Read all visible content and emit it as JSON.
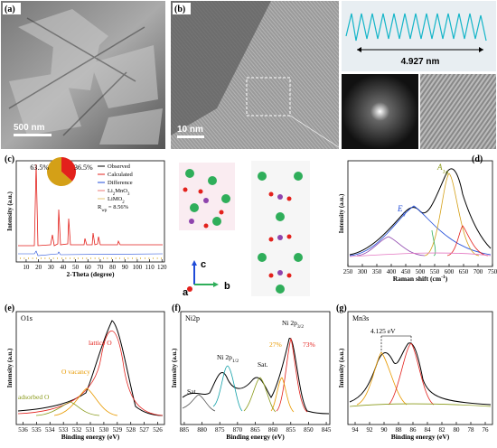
{
  "panels": {
    "a": {
      "label": "(a)",
      "scale_bar": "500 nm"
    },
    "b": {
      "label": "(b)",
      "scale_bar": "10 nm",
      "spacing": "4.927 nm"
    },
    "c": {
      "label": "(c)",
      "ylabel": "Intensity (a.u.)",
      "xlabel": "2-Theta (degree)",
      "xlim": [
        2,
        122
      ],
      "xticks": [
        10,
        20,
        30,
        40,
        50,
        60,
        70,
        80,
        90,
        100,
        110,
        120
      ],
      "legend": [
        "Observed",
        "Calculated",
        "Difference",
        [
          {
            "text": "Li"
          },
          {
            "text": "2",
            "sub": true
          },
          {
            "text": "MnO"
          },
          {
            "text": "3",
            "sub": true
          }
        ],
        [
          {
            "text": "LiMO"
          },
          {
            "text": "2",
            "sub": true
          }
        ],
        [
          {
            "text": "R"
          },
          {
            "text": "wp",
            "sub": true
          },
          {
            "text": " = 8.56%"
          }
        ]
      ],
      "pie": {
        "values": [
          63.5,
          36.5
        ],
        "value_labels": [
          "63.5%",
          "36.5%"
        ],
        "colors": [
          "#d4a017",
          "#e3211c"
        ]
      },
      "axes": [
        "a",
        "b",
        "c"
      ]
    },
    "d": {
      "label": "(d)",
      "ylabel": "Intensity (a.u.)",
      "xlabel": [
        {
          "text": "Raman shift (cm"
        },
        {
          "text": "-1",
          "sup": true
        },
        {
          "text": ")"
        }
      ],
      "xlim": [
        250,
        750
      ],
      "xticks": [
        250,
        300,
        350,
        400,
        450,
        500,
        550,
        600,
        650,
        700,
        750
      ],
      "peaks": [
        [
          {
            "text": "E"
          },
          {
            "text": "g",
            "sub": true
          }
        ],
        [
          {
            "text": "A"
          },
          {
            "text": "1g",
            "sub": true
          }
        ]
      ]
    },
    "e": {
      "label": "(e)",
      "spectrum": "O1s",
      "ylabel": "Intensity (a.u.)",
      "xlabel": "Binding energy (eV)",
      "xlim": [
        536.5,
        525.5
      ],
      "xticks": [
        536,
        535,
        534,
        533,
        532,
        531,
        530,
        529,
        528,
        527,
        526
      ],
      "annotations": [
        "lattice O",
        "O vacancy",
        "adsorbed O"
      ]
    },
    "f": {
      "label": "(f)",
      "spectrum": "Ni2p",
      "ylabel": "Intensity (a.u.)",
      "xlabel": "Binding energy (eV)",
      "xlim": [
        886,
        844
      ],
      "xticks": [
        885,
        880,
        875,
        870,
        865,
        860,
        855,
        850,
        845
      ],
      "annotations": [
        [
          {
            "text": "Ni 2p"
          },
          {
            "text": "3/2",
            "sub": true
          }
        ],
        [
          {
            "text": "Ni 2p"
          },
          {
            "text": "1/2",
            "sub": true
          }
        ],
        "Sat.",
        "Sat.",
        "27%",
        "73%"
      ]
    },
    "g": {
      "label": "(g)",
      "spectrum": "Mn3s",
      "ylabel": "Intensity (a.u.)",
      "xlabel": "Binding energy (eV)",
      "xlim": [
        95,
        75
      ],
      "xticks": [
        94,
        92,
        90,
        88,
        86,
        84,
        82,
        80,
        78,
        76
      ],
      "annotations": [
        "4.125 eV"
      ]
    }
  }
}
